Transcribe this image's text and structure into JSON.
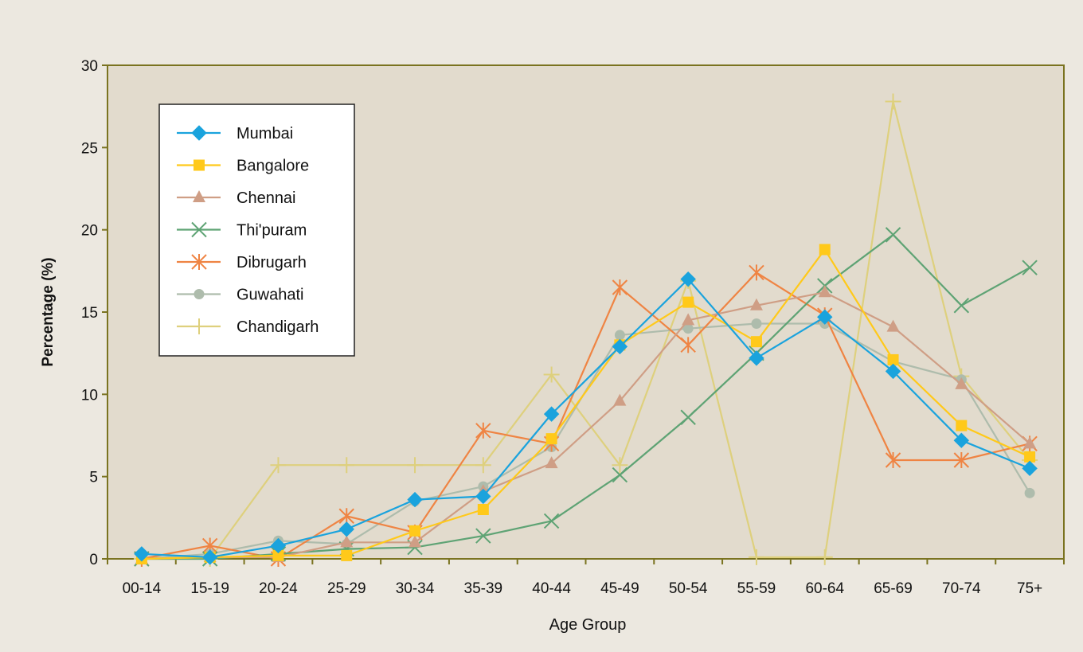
{
  "chart_data": {
    "type": "line",
    "title": "",
    "xlabel": "Age Group",
    "ylabel": "Percentage (%)",
    "ylim": [
      0,
      30
    ],
    "yticks": [
      0,
      5,
      10,
      15,
      20,
      25,
      30
    ],
    "grid": false,
    "legend_position": "top-left",
    "categories": [
      "00-14",
      "15-19",
      "20-24",
      "25-29",
      "30-34",
      "35-39",
      "40-44",
      "45-49",
      "50-54",
      "55-59",
      "60-64",
      "65-69",
      "70-74",
      "75+"
    ],
    "series": [
      {
        "name": "Mumbai",
        "color": "#1aa3dd",
        "marker": "diamond",
        "values": [
          0.3,
          0.1,
          0.8,
          1.8,
          3.6,
          3.8,
          8.8,
          12.9,
          17.0,
          12.2,
          14.7,
          11.4,
          7.2,
          5.5
        ]
      },
      {
        "name": "Bangalore",
        "color": "#ffc91a",
        "marker": "square",
        "values": [
          0.0,
          0.1,
          0.2,
          0.2,
          1.7,
          3.0,
          7.3,
          13.0,
          15.6,
          13.2,
          18.8,
          12.1,
          8.1,
          6.2
        ]
      },
      {
        "name": "Chennai",
        "color": "#cf9e85",
        "marker": "triangle",
        "values": [
          0.0,
          0.1,
          0.1,
          1.0,
          1.0,
          4.1,
          5.8,
          9.6,
          14.5,
          15.4,
          16.2,
          14.1,
          10.6,
          7.0
        ]
      },
      {
        "name": "Thi'puram",
        "color": "#5ea374",
        "marker": "x",
        "values": [
          0.0,
          0.0,
          0.3,
          0.6,
          0.7,
          1.4,
          2.3,
          5.1,
          8.6,
          12.5,
          16.6,
          19.7,
          15.4,
          17.7
        ]
      },
      {
        "name": "Dibrugarh",
        "color": "#ef8443",
        "marker": "star",
        "values": [
          0.0,
          0.8,
          0.0,
          2.6,
          1.6,
          7.8,
          7.0,
          16.5,
          13.0,
          17.4,
          14.8,
          6.0,
          6.0,
          7.0
        ]
      },
      {
        "name": "Guwahati",
        "color": "#aebcac",
        "marker": "circle",
        "values": [
          0.0,
          0.3,
          1.1,
          0.9,
          3.5,
          4.4,
          6.8,
          13.6,
          14.0,
          14.3,
          14.3,
          12.0,
          10.9,
          4.0
        ]
      },
      {
        "name": "Chandigarh",
        "color": "#ded07d",
        "marker": "plus",
        "values": [
          0.0,
          0.0,
          5.7,
          5.7,
          5.7,
          5.7,
          11.2,
          5.7,
          16.9,
          0.1,
          0.1,
          27.8,
          11.1,
          6.0
        ]
      }
    ]
  }
}
